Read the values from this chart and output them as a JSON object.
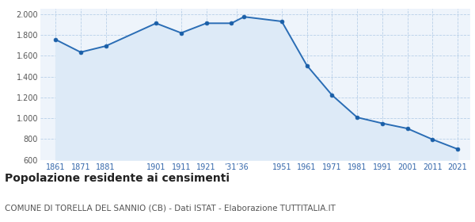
{
  "years": [
    1861,
    1871,
    1881,
    1901,
    1911,
    1921,
    1931,
    1936,
    1951,
    1961,
    1971,
    1981,
    1991,
    2001,
    2011,
    2021
  ],
  "population": [
    1756,
    1634,
    1693,
    1912,
    1819,
    1912,
    1912,
    1974,
    1930,
    1507,
    1222,
    1008,
    951,
    901,
    796,
    703
  ],
  "line_color": "#2a6db5",
  "fill_color": "#ddeaf7",
  "marker_color": "#1a5fa8",
  "background_color": "#eef4fb",
  "grid_color": "#b8cfe8",
  "ylim": [
    600,
    2050
  ],
  "yticks": [
    600,
    800,
    1000,
    1200,
    1400,
    1600,
    1800,
    2000
  ],
  "x_tick_positions": [
    1861,
    1871,
    1881,
    1901,
    1911,
    1921,
    1933,
    1951,
    1961,
    1971,
    1981,
    1991,
    2001,
    2011,
    2021
  ],
  "x_tick_labels": [
    "1861",
    "1871",
    "1881",
    "1901",
    "1911",
    "1921",
    "’31’36",
    "1951",
    "1961",
    "1971",
    "1981",
    "1991",
    "2001",
    "2011",
    "2021"
  ],
  "title": "Popolazione residente ai censimenti",
  "subtitle": "COMUNE DI TORELLA DEL SANNIO (CB) - Dati ISTAT - Elaborazione TUTTITALIA.IT",
  "title_fontsize": 10,
  "subtitle_fontsize": 7.5
}
